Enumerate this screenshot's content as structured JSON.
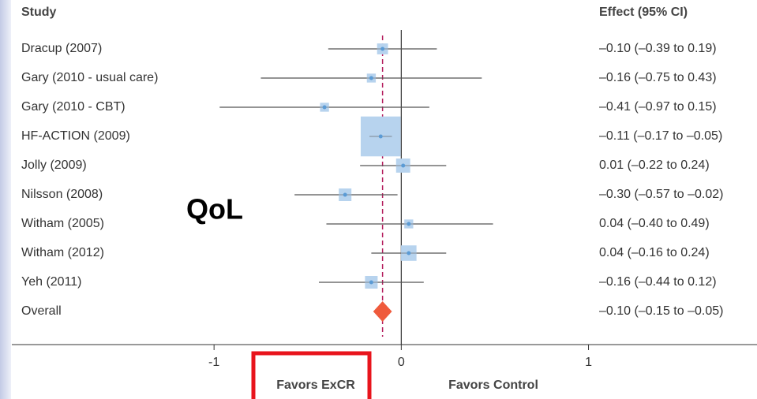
{
  "chart_data": {
    "type": "forest",
    "study_header": "Study",
    "effect_header": "Effect (95% CI)",
    "categories": [
      "Dracup (2007)",
      "Gary (2010 - usual care)",
      "Gary (2010 - CBT)",
      "HF-ACTION (2009)",
      "Jolly (2009)",
      "Nilsson (2008)",
      "Witham (2005)",
      "Witham (2012)",
      "Yeh (2011)"
    ],
    "values": [
      -0.1,
      -0.16,
      -0.41,
      -0.11,
      0.01,
      -0.3,
      0.04,
      0.04,
      -0.16
    ],
    "lower": [
      -0.39,
      -0.75,
      -0.97,
      -0.17,
      -0.22,
      -0.57,
      -0.4,
      -0.16,
      -0.44
    ],
    "upper": [
      0.19,
      0.43,
      0.15,
      -0.05,
      0.24,
      -0.02,
      0.49,
      0.24,
      0.12
    ],
    "weights": [
      3,
      2,
      2,
      40,
      5,
      4,
      2,
      6,
      4
    ],
    "value_labels": [
      "–0.10 (–0.39 to 0.19)",
      "–0.16 (–0.75 to 0.43)",
      "–0.41 (–0.97 to 0.15)",
      "–0.11 (–0.17 to –0.05)",
      "0.01 (–0.22 to 0.24)",
      "–0.30 (–0.57 to –0.02)",
      "0.04 (–0.40 to 0.49)",
      "0.04 (–0.16 to 0.24)",
      "–0.16 (–0.44 to 0.12)"
    ],
    "overall": {
      "name": "Overall",
      "value": -0.1,
      "lower": -0.15,
      "upper": -0.05,
      "value_label": "–0.10 (–0.15 to –0.05)",
      "color": "#ef5a3c"
    },
    "box_color": "#b7d3ee",
    "dot_color": "#5b9bd5",
    "line_color": "#555555",
    "overall_line_color": "#b3185a",
    "xlim": [
      -2.08,
      1.9
    ],
    "xticks": [
      -1,
      0,
      1
    ],
    "annotations": [
      "QoL",
      "Favors ExCR",
      "Favors Control"
    ]
  }
}
